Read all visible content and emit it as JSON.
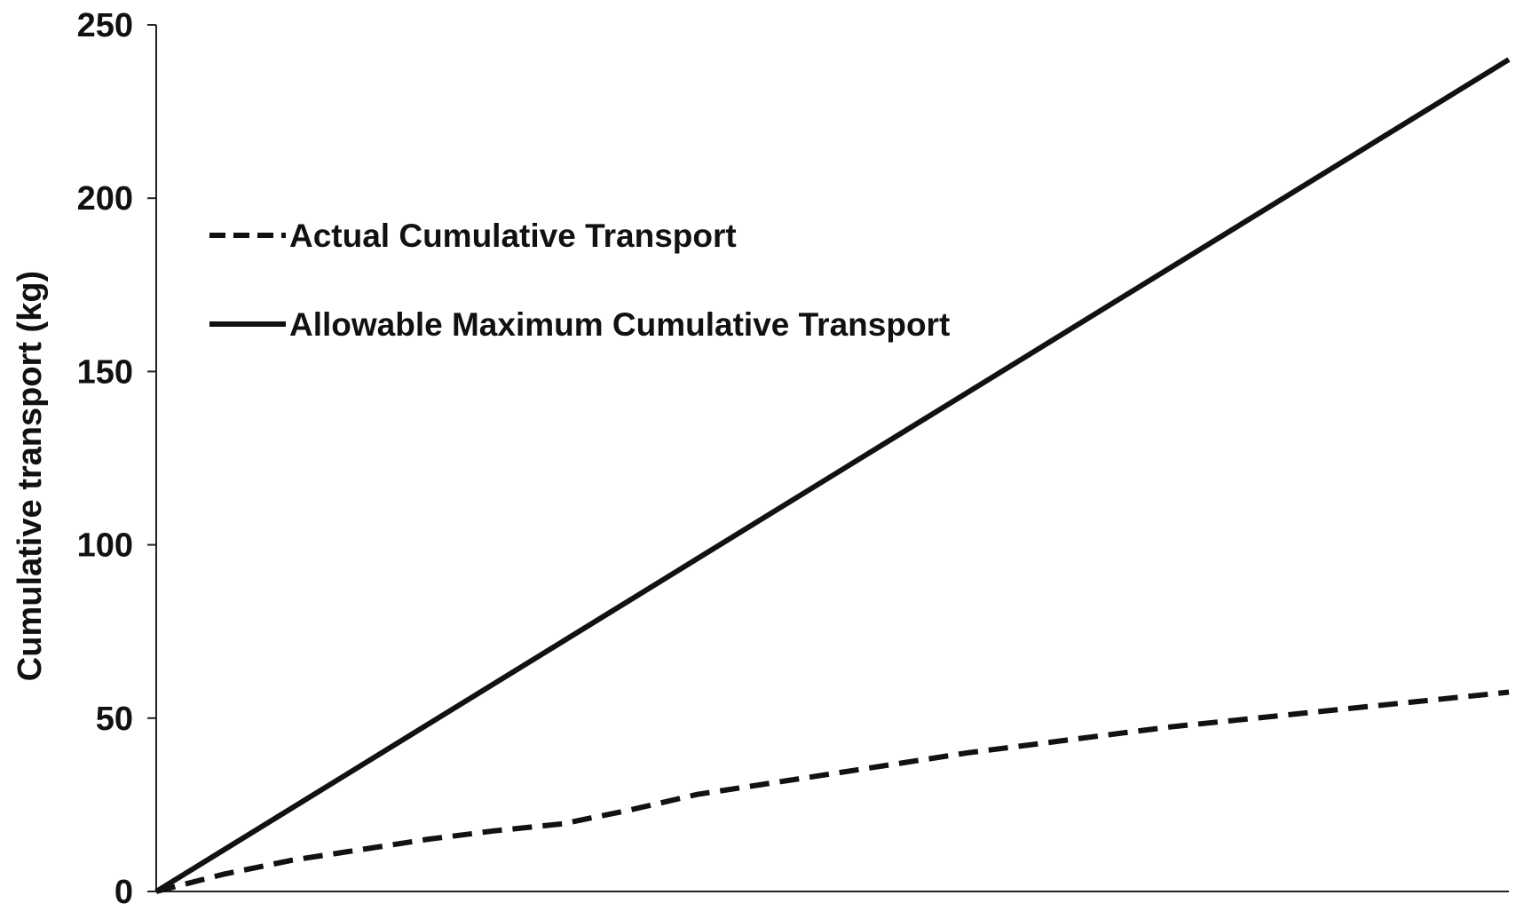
{
  "chart_data": {
    "type": "line",
    "title": "",
    "xlabel": "",
    "ylabel": "Cumulative transport (kg)",
    "ylim": [
      0,
      250
    ],
    "yticks": [
      0,
      50,
      100,
      150,
      200,
      250
    ],
    "xlim": [
      0,
      100
    ],
    "grid": false,
    "legend_position": "top-left",
    "series": [
      {
        "name": "Actual Cumulative Transport",
        "style": "dashed",
        "color": "#111111",
        "x": [
          0,
          5,
          10,
          15,
          20,
          25,
          30,
          35,
          40,
          45,
          50,
          55,
          60,
          65,
          70,
          75,
          80,
          85,
          90,
          95,
          100
        ],
        "y": [
          0,
          5,
          9,
          12,
          15,
          17.5,
          19.5,
          23.5,
          28,
          31,
          34,
          37,
          40,
          42.5,
          45,
          47.5,
          49.5,
          51.5,
          53.5,
          55.5,
          57.5
        ]
      },
      {
        "name": "Allowable Maximum Cumulative Transport",
        "style": "solid",
        "color": "#111111",
        "x": [
          0,
          10,
          20,
          30,
          40,
          50,
          60,
          70,
          80,
          90,
          100
        ],
        "y": [
          0,
          24,
          48,
          72,
          96,
          120,
          144,
          168,
          192,
          216,
          240
        ]
      }
    ]
  }
}
